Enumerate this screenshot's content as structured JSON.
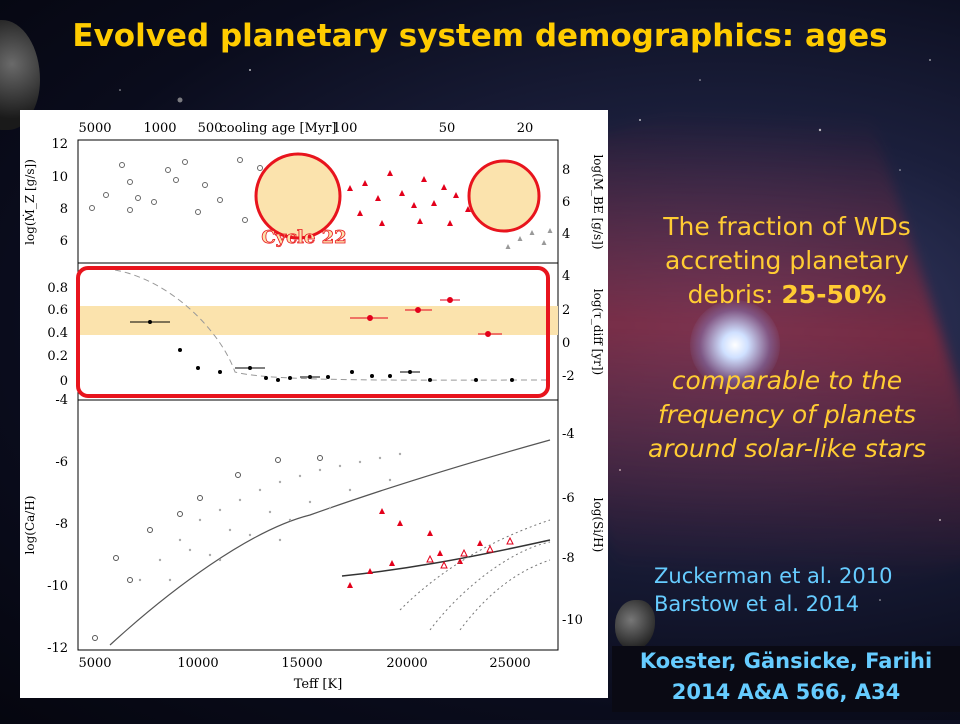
{
  "slide": {
    "title": "Evolved planetary system demographics: ages",
    "fraction_text": "The fraction of WDs accreting planetary debris:",
    "fraction_value": "25-50%",
    "comparison_text": "comparable to the frequency of planets around solar-like stars",
    "refs": [
      "Zuckerman et al. 2010",
      "Barstow et al. 2014"
    ],
    "citation": [
      "Koester, Gänsicke, Farihi",
      "2014 A&A 566, A34"
    ]
  },
  "figure": {
    "annotation": "Cycle 22",
    "top_axis_label": "cooling age [Myr]",
    "top_ticks": [
      "5000",
      "1000",
      "500",
      "100",
      "50",
      "20"
    ],
    "xlabel": "Teff [K]",
    "x_ticks": [
      "5000",
      "10000",
      "15000",
      "20000",
      "25000"
    ],
    "panel1_ylabel": "log(Ṁ_Z [g/s])",
    "panel1_yticks": [
      "12",
      "10",
      "8",
      "6"
    ],
    "panel1_right_label": "log(M_BE [g/s])",
    "panel1_right_ticks": [
      "8",
      "6",
      "4"
    ],
    "panel2_yticks": [
      "0.8",
      "0.6",
      "0.4",
      "0.2",
      "0"
    ],
    "panel2_right_label": "log(τ_diff [yr])",
    "panel2_right_ticks": [
      "4",
      "2",
      "0",
      "-2"
    ],
    "panel3_ylabel": "log(Ca/H)",
    "panel3_yticks": [
      "-4",
      "-6",
      "-8",
      "-10",
      "-12"
    ],
    "panel3_right_label": "log(Si/H)",
    "panel3_right_ticks": [
      "-4",
      "-6",
      "-8",
      "-10"
    ],
    "colors": {
      "highlight_band": "#fbe3ad",
      "red_marker": "#e3001b",
      "box_red": "#e8141d",
      "circle_fill": "#fbe3ad"
    }
  }
}
